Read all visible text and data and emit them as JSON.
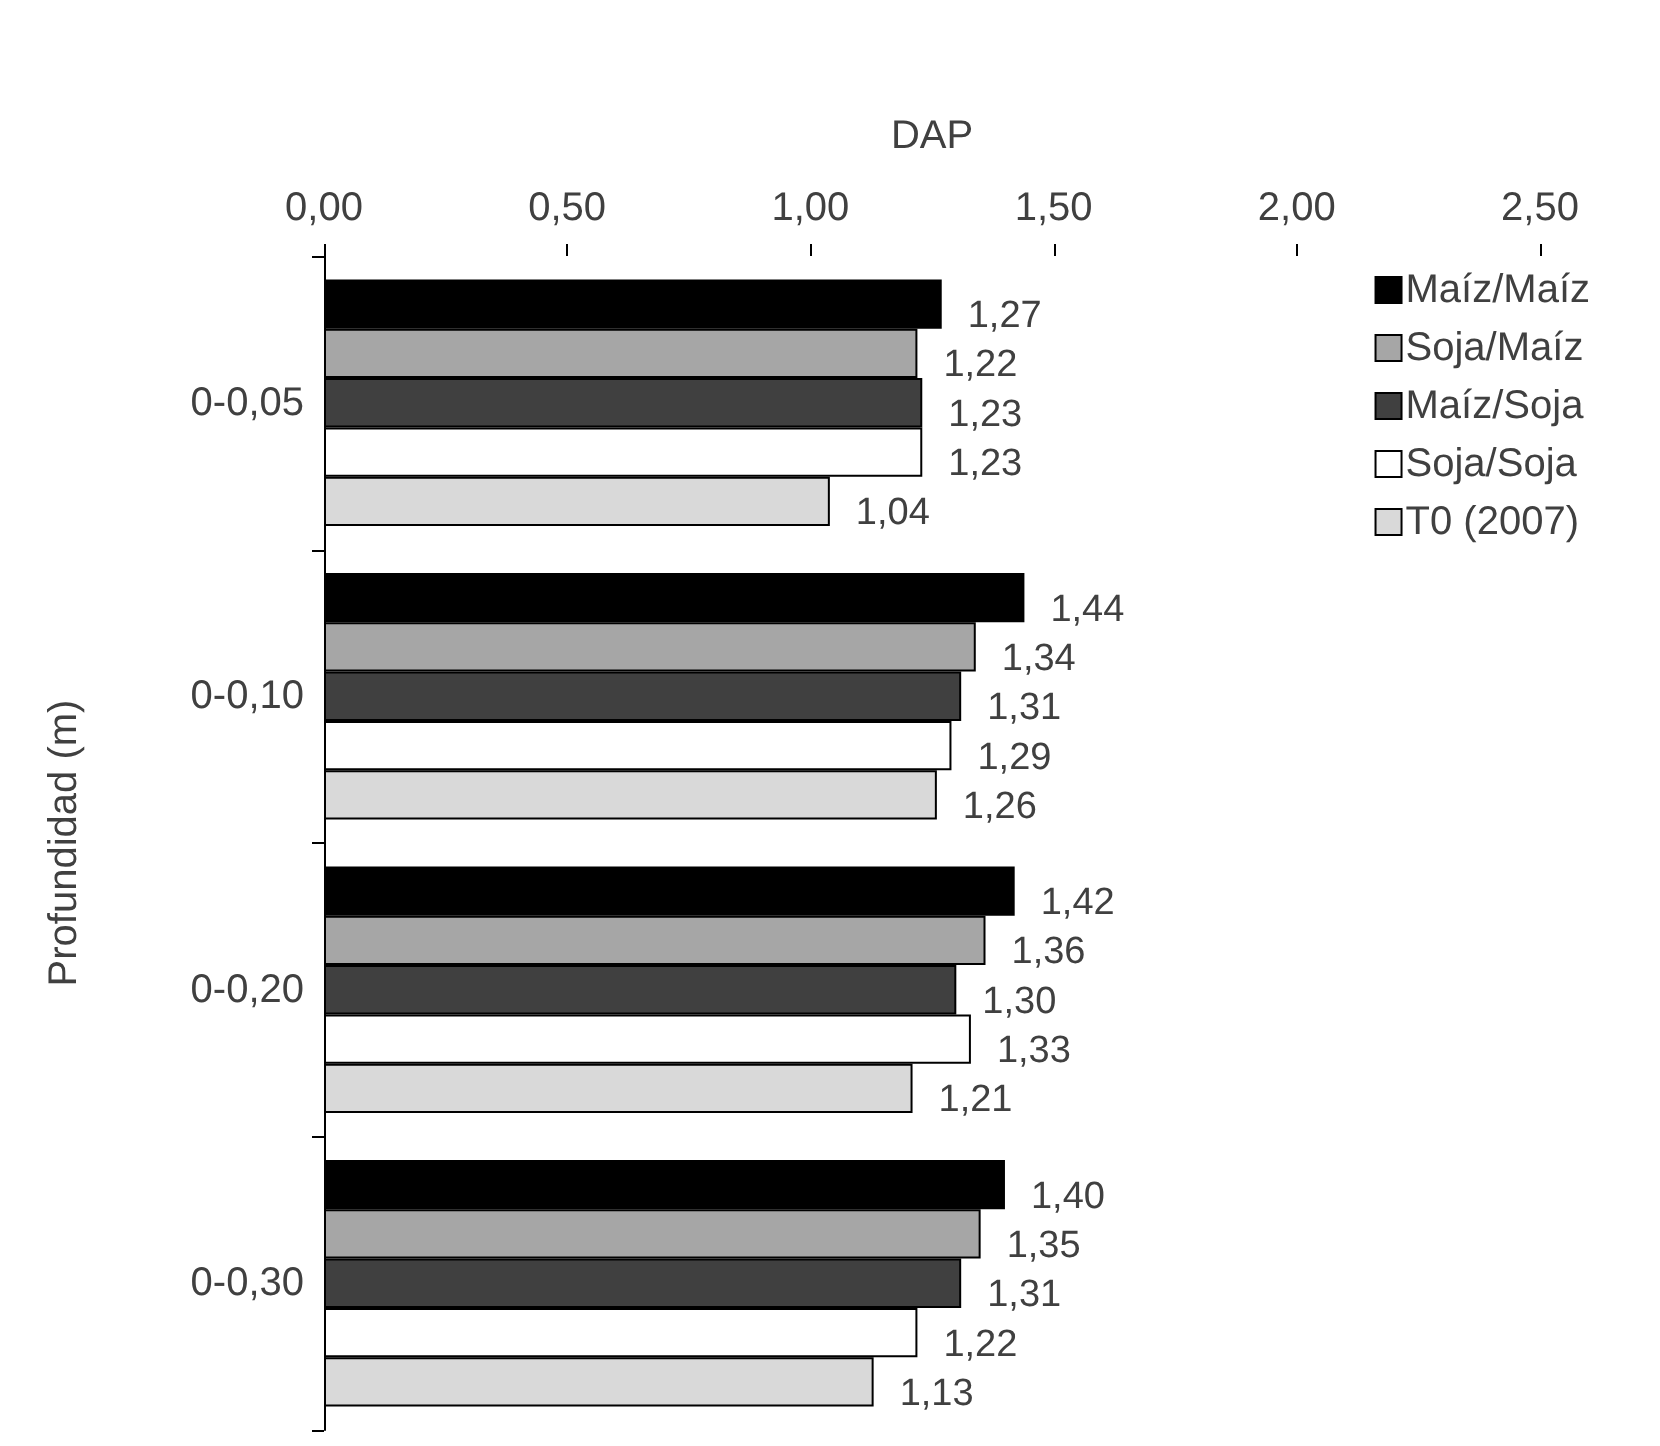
{
  "chart_data": {
    "type": "bar",
    "orientation": "horizontal",
    "xlabel": "DAP",
    "ylabel": "Profundidad (m)",
    "categories": [
      "0-0,05",
      "0-0,10",
      "0-0,20",
      "0-0,30"
    ],
    "xlim": [
      0,
      2.5
    ],
    "xticks": [
      {
        "value": 0,
        "label": "0,00"
      },
      {
        "value": 0.5,
        "label": "0,50"
      },
      {
        "value": 1,
        "label": "1,00"
      },
      {
        "value": 1.5,
        "label": "1,50"
      },
      {
        "value": 2,
        "label": "2,00"
      },
      {
        "value": 2.5,
        "label": "2,50"
      }
    ],
    "grid": false,
    "legend": "top right",
    "series": [
      {
        "name": "Maíz/Maíz",
        "color": "#000000",
        "values": [
          1.27,
          1.44,
          1.42,
          1.4
        ],
        "value_labels": [
          "1,27",
          "1,44",
          "1,42",
          "1,40"
        ]
      },
      {
        "name": "Soja/Maíz",
        "color": "#a6a6a6",
        "values": [
          1.22,
          1.34,
          1.36,
          1.35
        ],
        "value_labels": [
          "1,22",
          "1,34",
          "1,36",
          "1,35"
        ]
      },
      {
        "name": "Maíz/Soja",
        "color": "#404040",
        "values": [
          1.23,
          1.31,
          1.3,
          1.31
        ],
        "value_labels": [
          "1,23",
          "1,31",
          "1,30",
          "1,31"
        ]
      },
      {
        "name": "Soja/Soja",
        "color": "#ffffff",
        "values": [
          1.23,
          1.29,
          1.33,
          1.22
        ],
        "value_labels": [
          "1,23",
          "1,29",
          "1,33",
          "1,22"
        ]
      },
      {
        "name": "T0 (2007)",
        "color": "#d9d9d9",
        "values": [
          1.04,
          1.26,
          1.21,
          1.13
        ],
        "value_labels": [
          "1,04",
          "1,26",
          "1,21",
          "1,13"
        ]
      }
    ]
  }
}
